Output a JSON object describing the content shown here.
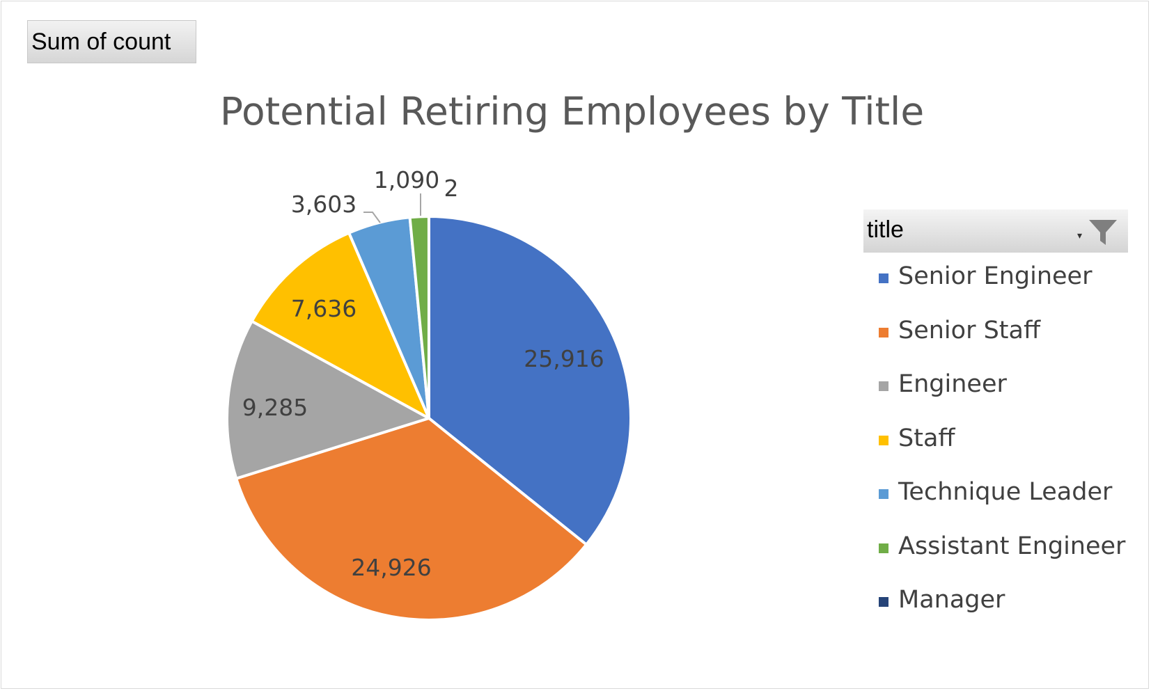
{
  "field_button": {
    "label": "Sum of count"
  },
  "legend_filter": {
    "label": "title",
    "icon": "filter-icon"
  },
  "chart_data": {
    "type": "pie",
    "title": "Potential Retiring Employees by Title",
    "categories": [
      "Senior Engineer",
      "Senior Staff",
      "Engineer",
      "Staff",
      "Technique Leader",
      "Assistant Engineer",
      "Manager"
    ],
    "values": [
      25916,
      24926,
      9285,
      7636,
      3603,
      1090,
      2
    ],
    "value_labels": [
      "25,916",
      "24,926",
      "9,285",
      "7,636",
      "3,603",
      "1,090",
      "2"
    ],
    "colors": [
      "#4472C4",
      "#ED7D31",
      "#A5A5A5",
      "#FFC000",
      "#5B9BD5",
      "#70AD47",
      "#264478"
    ],
    "legend": "right"
  }
}
